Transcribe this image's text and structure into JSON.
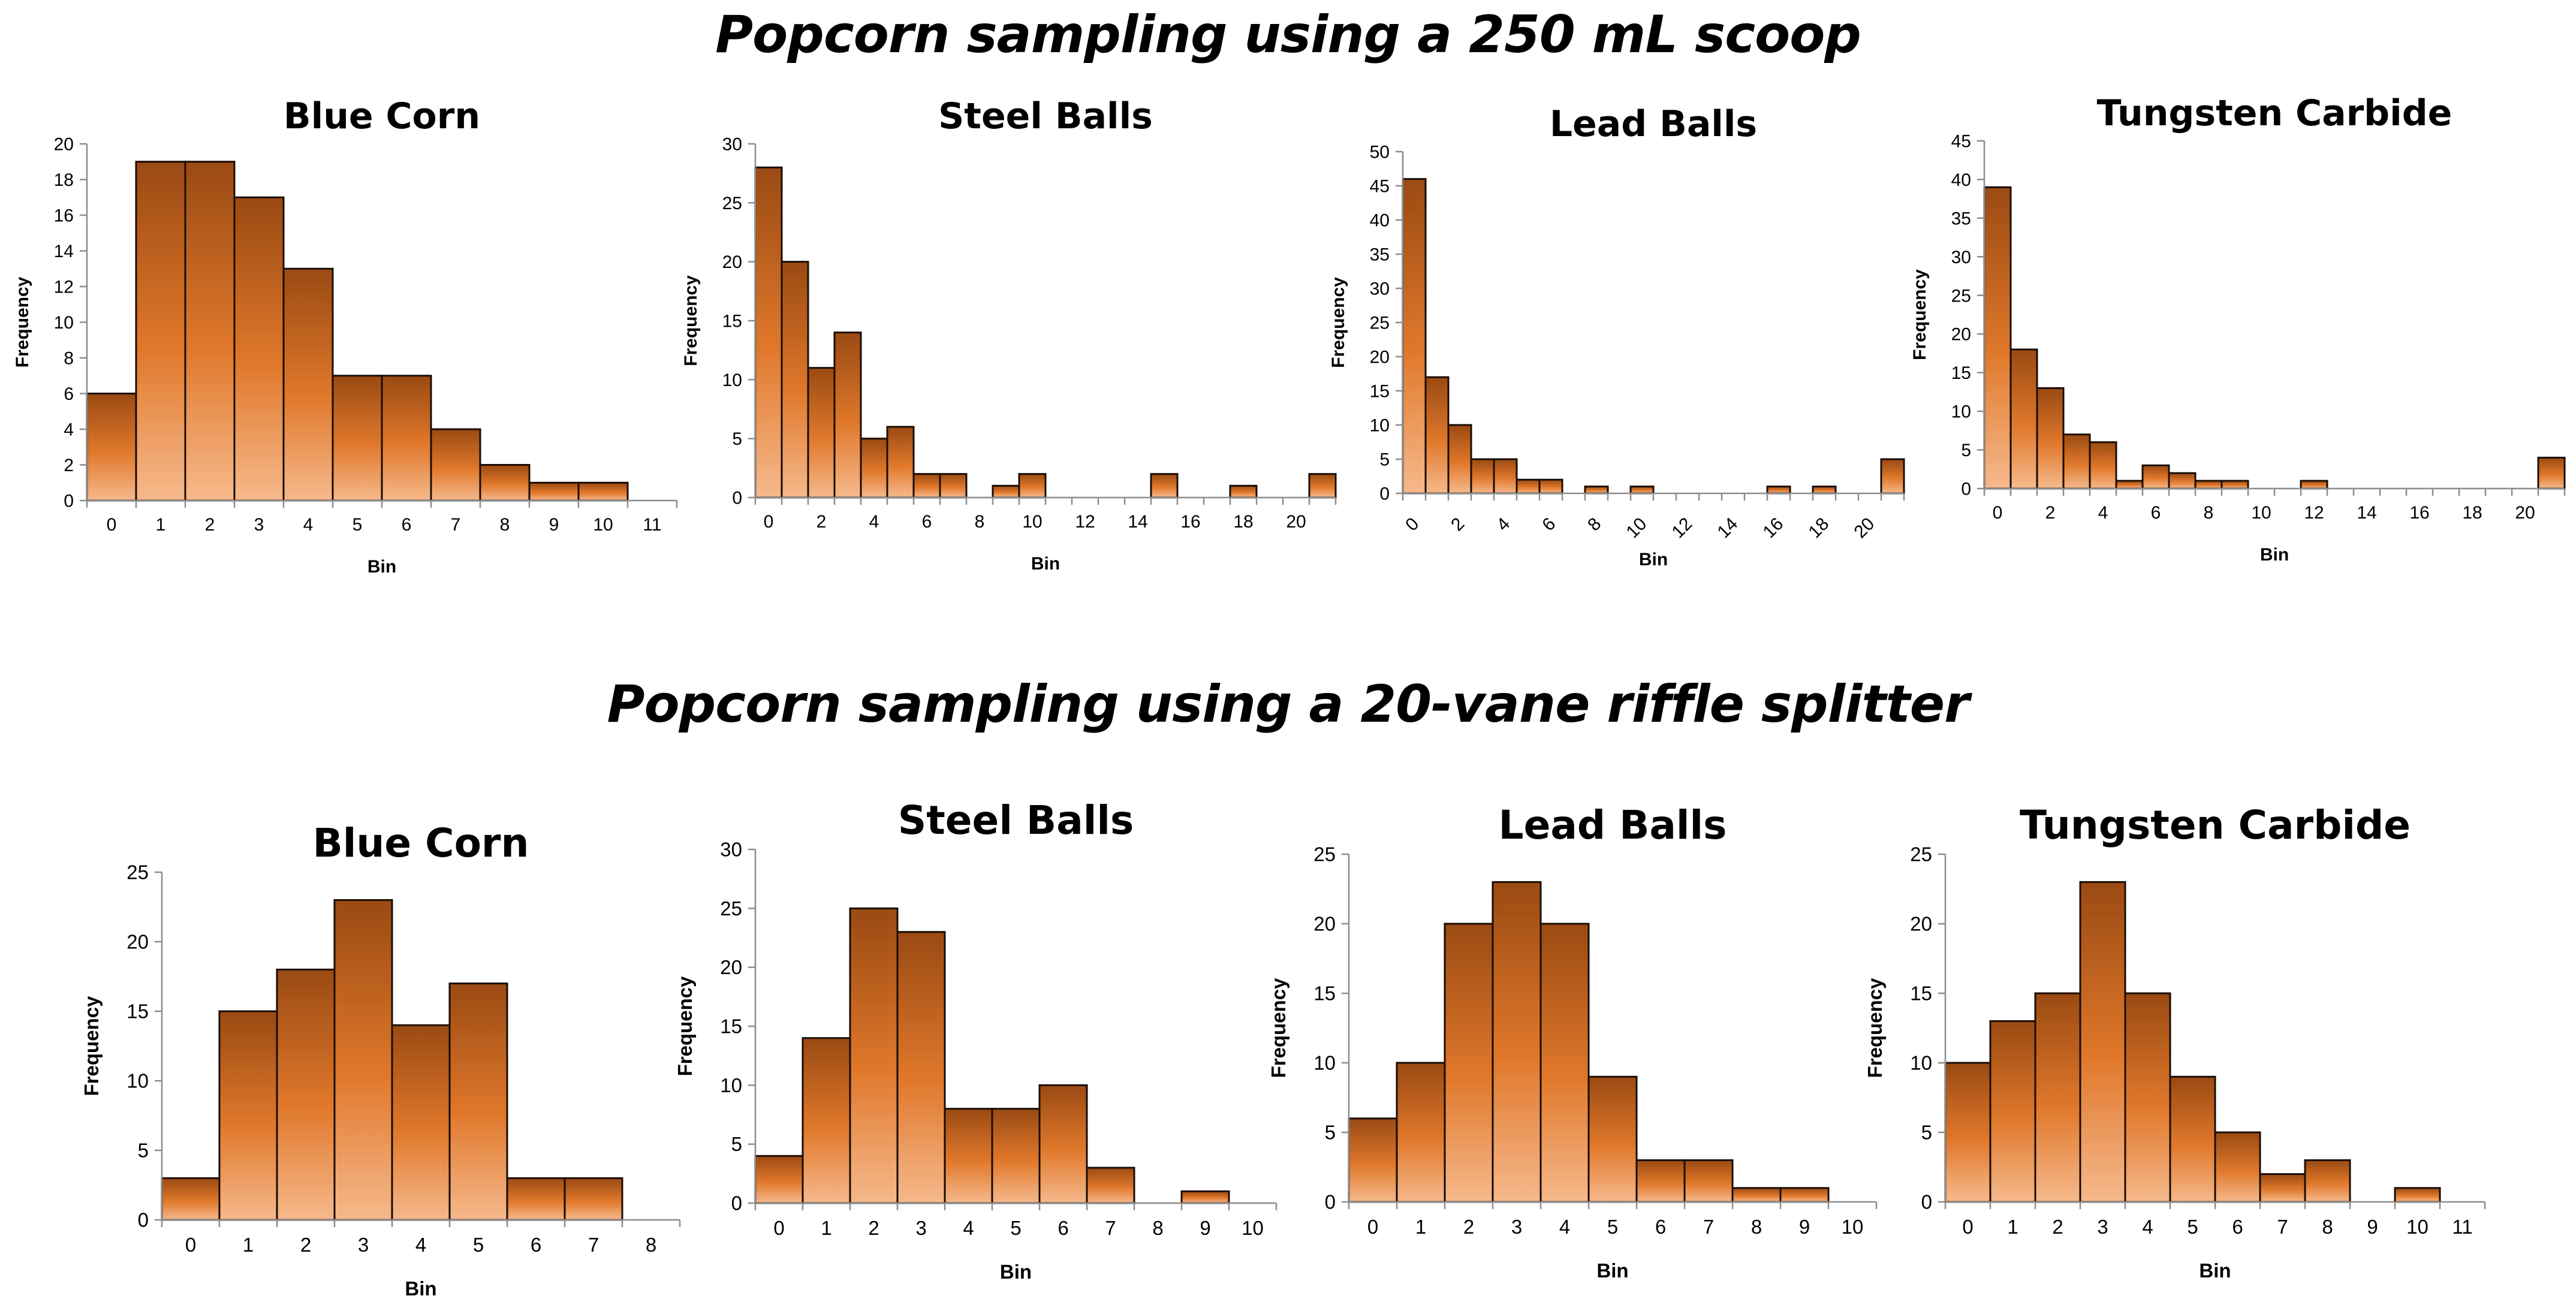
{
  "titles": {
    "top": "Popcorn sampling using a 250 mL scoop",
    "bottom": "Popcorn sampling using a 20-vane riffle splitter"
  },
  "colors": {
    "bar_dark": "#9a4a13",
    "bar_mid": "#e0782b",
    "bar_light": "#f6b98c",
    "bar_outline": "#1a0d04"
  },
  "chart_data": [
    {
      "type": "bar",
      "title": "Blue Corn",
      "xlabel": "Bin",
      "ylabel": "Frequency",
      "categories": [
        "0",
        "1",
        "2",
        "3",
        "4",
        "5",
        "6",
        "7",
        "8",
        "9",
        "10",
        "11"
      ],
      "values": [
        6,
        19,
        19,
        17,
        13,
        7,
        7,
        4,
        2,
        1,
        1,
        0
      ],
      "xticks": [
        "0",
        "1",
        "2",
        "3",
        "4",
        "5",
        "6",
        "7",
        "8",
        "9",
        "10",
        "11"
      ],
      "ylim": [
        0,
        20
      ],
      "yticks": [
        0,
        2,
        4,
        6,
        8,
        10,
        12,
        14,
        16,
        18,
        20
      ]
    },
    {
      "type": "bar",
      "title": "Steel Balls",
      "xlabel": "Bin",
      "ylabel": "Frequency",
      "categories": [
        "0",
        "1",
        "2",
        "3",
        "4",
        "5",
        "6",
        "7",
        "8",
        "9",
        "10",
        "11",
        "12",
        "13",
        "14",
        "15",
        "16",
        "17",
        "18",
        "19",
        "20",
        "21"
      ],
      "values": [
        28,
        20,
        11,
        14,
        5,
        6,
        2,
        2,
        0,
        1,
        2,
        0,
        0,
        0,
        0,
        2,
        0,
        0,
        1,
        0,
        0,
        2
      ],
      "xticks": [
        "0",
        "",
        "2",
        "",
        "4",
        "",
        "6",
        "",
        "8",
        "",
        "10",
        "",
        "12",
        "",
        "14",
        "",
        "16",
        "",
        "18",
        "",
        "20",
        ""
      ],
      "ylim": [
        0,
        30
      ],
      "yticks": [
        0,
        5,
        10,
        15,
        20,
        25,
        30
      ]
    },
    {
      "type": "bar",
      "title": "Lead Balls",
      "xlabel": "Bin",
      "ylabel": "Frequency",
      "categories": [
        "0",
        "1",
        "2",
        "3",
        "4",
        "5",
        "6",
        "7",
        "8",
        "9",
        "10",
        "11",
        "12",
        "13",
        "14",
        "15",
        "16",
        "17",
        "18",
        "19",
        "20",
        "21"
      ],
      "values": [
        46,
        17,
        10,
        5,
        5,
        2,
        2,
        0,
        1,
        0,
        1,
        0,
        0,
        0,
        0,
        0,
        1,
        0,
        1,
        0,
        0,
        5
      ],
      "xticks": [
        "0",
        "",
        "2",
        "",
        "4",
        "",
        "6",
        "",
        "8",
        "",
        "10",
        "",
        "12",
        "",
        "14",
        "",
        "16",
        "",
        "18",
        "",
        "20",
        ""
      ],
      "ylim": [
        0,
        50
      ],
      "yticks": [
        0,
        5,
        10,
        15,
        20,
        25,
        30,
        35,
        40,
        45,
        50
      ]
    },
    {
      "type": "bar",
      "title": "Tungsten Carbide",
      "xlabel": "Bin",
      "ylabel": "Frequency",
      "categories": [
        "0",
        "1",
        "2",
        "3",
        "4",
        "5",
        "6",
        "7",
        "8",
        "9",
        "10",
        "11",
        "12",
        "13",
        "14",
        "15",
        "16",
        "17",
        "18",
        "19",
        "20",
        "21"
      ],
      "values": [
        39,
        18,
        13,
        7,
        6,
        1,
        3,
        2,
        1,
        1,
        0,
        0,
        1,
        0,
        0,
        0,
        0,
        0,
        0,
        0,
        0,
        4
      ],
      "xticks": [
        "0",
        "",
        "2",
        "",
        "4",
        "",
        "6",
        "",
        "8",
        "",
        "10",
        "",
        "12",
        "",
        "14",
        "",
        "16",
        "",
        "18",
        "",
        "20",
        ""
      ],
      "ylim": [
        0,
        45
      ],
      "yticks": [
        0,
        5,
        10,
        15,
        20,
        25,
        30,
        35,
        40,
        45
      ]
    },
    {
      "type": "bar",
      "title": "Blue Corn",
      "xlabel": "Bin",
      "ylabel": "Frequency",
      "categories": [
        "0",
        "1",
        "2",
        "3",
        "4",
        "5",
        "6",
        "7",
        "8"
      ],
      "values": [
        3,
        15,
        18,
        23,
        14,
        17,
        3,
        3,
        0
      ],
      "xticks": [
        "0",
        "1",
        "2",
        "3",
        "4",
        "5",
        "6",
        "7",
        "8"
      ],
      "ylim": [
        0,
        25
      ],
      "yticks": [
        0,
        5,
        10,
        15,
        20,
        25
      ]
    },
    {
      "type": "bar",
      "title": "Steel Balls",
      "xlabel": "Bin",
      "ylabel": "Frequency",
      "categories": [
        "0",
        "1",
        "2",
        "3",
        "4",
        "5",
        "6",
        "7",
        "8",
        "9",
        "10"
      ],
      "values": [
        4,
        14,
        25,
        23,
        8,
        8,
        10,
        3,
        0,
        1,
        0
      ],
      "xticks": [
        "0",
        "1",
        "2",
        "3",
        "4",
        "5",
        "6",
        "7",
        "8",
        "9",
        "10"
      ],
      "ylim": [
        0,
        30
      ],
      "yticks": [
        0,
        5,
        10,
        15,
        20,
        25,
        30
      ]
    },
    {
      "type": "bar",
      "title": "Lead Balls",
      "xlabel": "Bin",
      "ylabel": "Frequency",
      "categories": [
        "0",
        "1",
        "2",
        "3",
        "4",
        "5",
        "6",
        "7",
        "8",
        "9",
        "10"
      ],
      "values": [
        6,
        10,
        20,
        23,
        20,
        9,
        3,
        3,
        1,
        1,
        0
      ],
      "xticks": [
        "0",
        "1",
        "2",
        "3",
        "4",
        "5",
        "6",
        "7",
        "8",
        "9",
        "10"
      ],
      "ylim": [
        0,
        25
      ],
      "yticks": [
        0,
        5,
        10,
        15,
        20,
        25
      ]
    },
    {
      "type": "bar",
      "title": "Tungsten Carbide",
      "xlabel": "Bin",
      "ylabel": "Frequency",
      "categories": [
        "0",
        "1",
        "2",
        "3",
        "4",
        "5",
        "6",
        "7",
        "8",
        "9",
        "10",
        "11"
      ],
      "values": [
        10,
        13,
        15,
        23,
        15,
        9,
        5,
        2,
        3,
        0,
        1,
        0
      ],
      "xticks": [
        "0",
        "1",
        "2",
        "3",
        "4",
        "5",
        "6",
        "7",
        "8",
        "9",
        "10",
        "11"
      ],
      "ylim": [
        0,
        25
      ],
      "yticks": [
        0,
        5,
        10,
        15,
        20,
        25
      ]
    }
  ]
}
